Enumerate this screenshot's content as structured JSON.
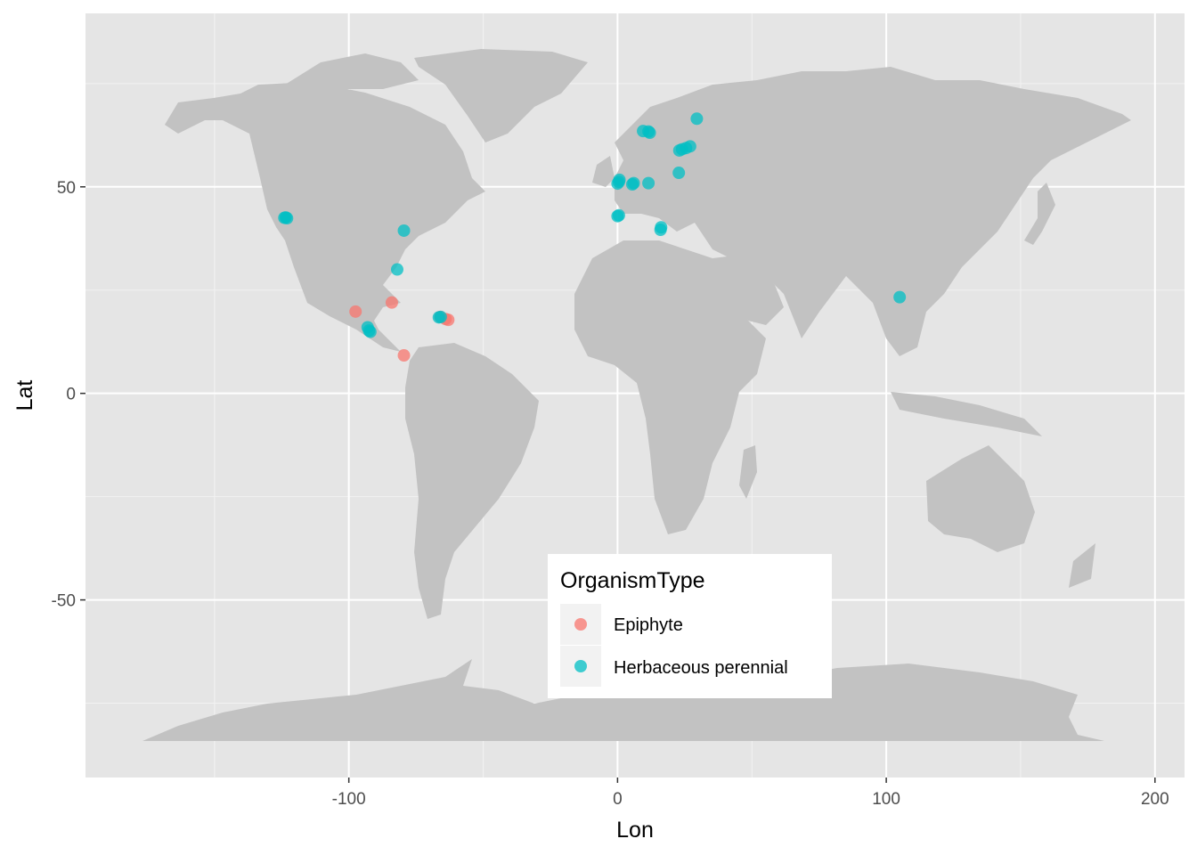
{
  "chart_data": {
    "type": "scatter",
    "xlabel": "Lon",
    "ylabel": "Lat",
    "xlim": [
      -198,
      211
    ],
    "ylim": [
      -93,
      92
    ],
    "x_ticks": [
      -100,
      0,
      100,
      200
    ],
    "x_tick_labels": [
      "-100",
      "0",
      "100",
      "200"
    ],
    "y_ticks": [
      -50,
      0,
      50
    ],
    "y_tick_labels": [
      "-50",
      "0",
      "50"
    ],
    "x_minor_ticks": [
      -150,
      -50,
      50,
      150
    ],
    "y_minor_ticks": [
      -75,
      -25,
      25,
      75
    ],
    "grid": true,
    "background": "#e5e5e5",
    "land_color": "#c2c2c2",
    "legend": {
      "title": "OrganismType",
      "placement": "bottom-center",
      "entries": [
        {
          "label": "Epiphyte",
          "color": "#f8766d"
        },
        {
          "label": "Herbaceous perennial",
          "color": "#00bfc4"
        }
      ]
    },
    "series": [
      {
        "name": "Epiphyte",
        "color": "#f8766d",
        "points": [
          [
            -97.5,
            19.8
          ],
          [
            -84,
            22
          ],
          [
            -79.5,
            9.2
          ],
          [
            -66,
            18.5
          ],
          [
            -63,
            17.8
          ],
          [
            -64,
            18
          ]
        ]
      },
      {
        "name": "Herbaceous perennial",
        "color": "#00bfc4",
        "points": [
          [
            -124,
            42.5
          ],
          [
            -123.5,
            42.6
          ],
          [
            -123,
            42.4
          ],
          [
            -79.5,
            39.4
          ],
          [
            -82,
            30
          ],
          [
            -93,
            16
          ],
          [
            -92.5,
            15.2
          ],
          [
            -92,
            14.9
          ],
          [
            -66.5,
            18.4
          ],
          [
            -65.8,
            18.5
          ],
          [
            0.5,
            51.2
          ],
          [
            0.7,
            51.7
          ],
          [
            0,
            50.8
          ],
          [
            5.5,
            50.6
          ],
          [
            6,
            50.9
          ],
          [
            11.5,
            50.9
          ],
          [
            0.5,
            43.1
          ],
          [
            0,
            42.9
          ],
          [
            16.2,
            40.2
          ],
          [
            16,
            39.6
          ],
          [
            9.5,
            63.5
          ],
          [
            12,
            63.1
          ],
          [
            11.5,
            63.4
          ],
          [
            29.5,
            66.5
          ],
          [
            23,
            58.8
          ],
          [
            25.5,
            59.4
          ],
          [
            27,
            59.8
          ],
          [
            24,
            59.1
          ],
          [
            22.8,
            53.4
          ],
          [
            105,
            23.3
          ]
        ]
      }
    ]
  }
}
